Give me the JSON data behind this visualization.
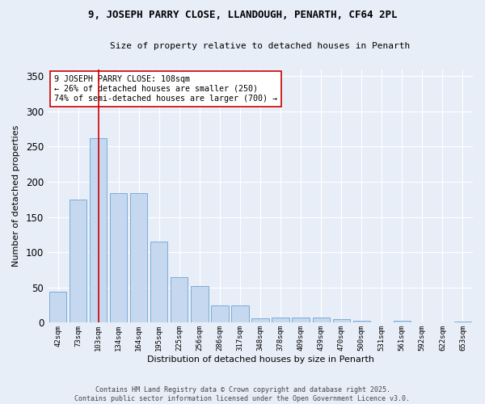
{
  "title1": "9, JOSEPH PARRY CLOSE, LLANDOUGH, PENARTH, CF64 2PL",
  "title2": "Size of property relative to detached houses in Penarth",
  "xlabel": "Distribution of detached houses by size in Penarth",
  "ylabel": "Number of detached properties",
  "bar_labels": [
    "42sqm",
    "73sqm",
    "103sqm",
    "134sqm",
    "164sqm",
    "195sqm",
    "225sqm",
    "256sqm",
    "286sqm",
    "317sqm",
    "348sqm",
    "378sqm",
    "409sqm",
    "439sqm",
    "470sqm",
    "500sqm",
    "531sqm",
    "561sqm",
    "592sqm",
    "622sqm",
    "653sqm"
  ],
  "bar_values": [
    44,
    175,
    262,
    184,
    184,
    115,
    65,
    52,
    25,
    25,
    6,
    7,
    7,
    7,
    5,
    3,
    0,
    3,
    0,
    0,
    2
  ],
  "bar_color": "#c5d8f0",
  "bar_edge_color": "#7aadd4",
  "background_color": "#e8eef8",
  "plot_bg_color": "#e8eef8",
  "grid_color": "#ffffff",
  "property_line_x": 2,
  "property_line_color": "#cc0000",
  "annotation_text": "9 JOSEPH PARRY CLOSE: 108sqm\n← 26% of detached houses are smaller (250)\n74% of semi-detached houses are larger (700) →",
  "annotation_box_color": "#ffffff",
  "annotation_box_edge": "#cc0000",
  "ylim": [
    0,
    360
  ],
  "yticks": [
    0,
    50,
    100,
    150,
    200,
    250,
    300,
    350
  ],
  "footer1": "Contains HM Land Registry data © Crown copyright and database right 2025.",
  "footer2": "Contains public sector information licensed under the Open Government Licence v3.0."
}
